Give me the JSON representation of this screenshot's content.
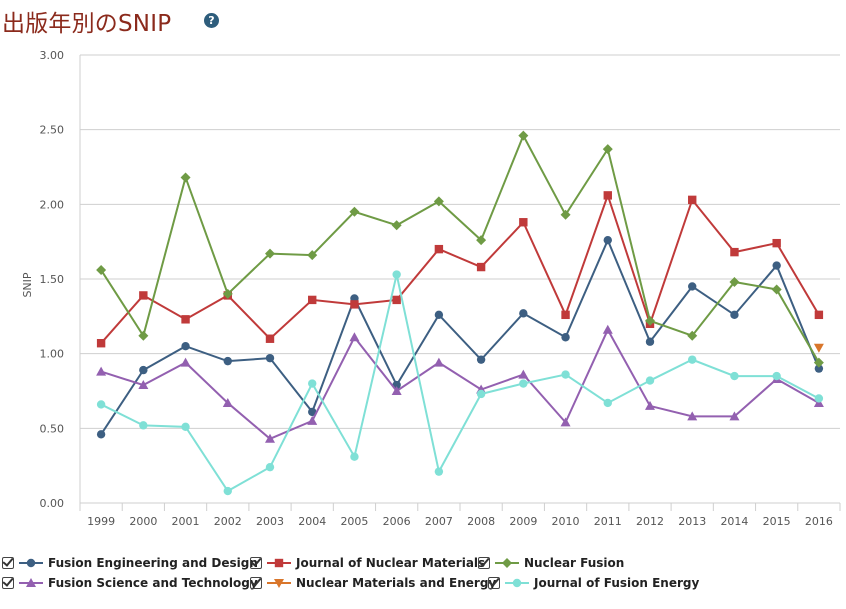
{
  "header": {
    "title": "出版年別のSNIP",
    "help_icon": "?"
  },
  "chart_data": {
    "type": "line",
    "title": "",
    "xlabel": "",
    "ylabel": "SNIP",
    "ylim": [
      0,
      3
    ],
    "y_ticks": [
      "0.00",
      "0.50",
      "1.00",
      "1.50",
      "2.00",
      "2.50",
      "3.00"
    ],
    "y_tick_values": [
      0,
      0.5,
      1,
      1.5,
      2,
      2.5,
      3
    ],
    "categories": [
      "1999",
      "2000",
      "2001",
      "2002",
      "2003",
      "2004",
      "2005",
      "2006",
      "2007",
      "2008",
      "2009",
      "2010",
      "2011",
      "2012",
      "2013",
      "2014",
      "2015",
      "2016"
    ],
    "grid": true,
    "legend": "bottom",
    "series": [
      {
        "name": "Fusion Engineering and Design",
        "color": "#3d5f82",
        "marker": "circle",
        "values": [
          0.46,
          0.89,
          1.05,
          0.95,
          0.97,
          0.61,
          1.37,
          0.79,
          1.26,
          0.96,
          1.27,
          1.11,
          1.76,
          1.08,
          1.45,
          1.26,
          1.59,
          0.9
        ]
      },
      {
        "name": "Journal of Nuclear Materials",
        "color": "#c03a3a",
        "marker": "square",
        "values": [
          1.07,
          1.39,
          1.23,
          1.39,
          1.1,
          1.36,
          1.33,
          1.36,
          1.7,
          1.58,
          1.88,
          1.26,
          2.06,
          1.2,
          2.03,
          1.68,
          1.74,
          1.26
        ]
      },
      {
        "name": "Nuclear Fusion",
        "color": "#6f9b45",
        "marker": "diamond",
        "values": [
          1.56,
          1.12,
          2.18,
          1.4,
          1.67,
          1.66,
          1.95,
          1.86,
          2.02,
          1.76,
          2.46,
          1.93,
          2.37,
          1.22,
          1.12,
          1.48,
          1.43,
          0.94
        ]
      },
      {
        "name": "Fusion Science and Technology",
        "color": "#9360b0",
        "marker": "triangle",
        "values": [
          0.88,
          0.79,
          0.94,
          0.67,
          0.43,
          0.55,
          1.11,
          0.75,
          0.94,
          0.76,
          0.86,
          0.54,
          1.16,
          0.65,
          0.58,
          0.58,
          0.83,
          0.67
        ]
      },
      {
        "name": "Nuclear Materials and Energy",
        "color": "#d9762b",
        "marker": "triangle-down",
        "values": [
          null,
          null,
          null,
          null,
          null,
          null,
          null,
          null,
          null,
          null,
          null,
          null,
          null,
          null,
          null,
          null,
          null,
          1.04
        ]
      },
      {
        "name": "Journal of Fusion Energy",
        "color": "#7fe0d6",
        "marker": "circle",
        "values": [
          0.66,
          0.52,
          0.51,
          0.08,
          0.24,
          0.8,
          0.31,
          1.53,
          0.21,
          0.73,
          0.8,
          0.86,
          0.67,
          0.82,
          0.96,
          0.85,
          0.85,
          0.7
        ]
      }
    ]
  }
}
